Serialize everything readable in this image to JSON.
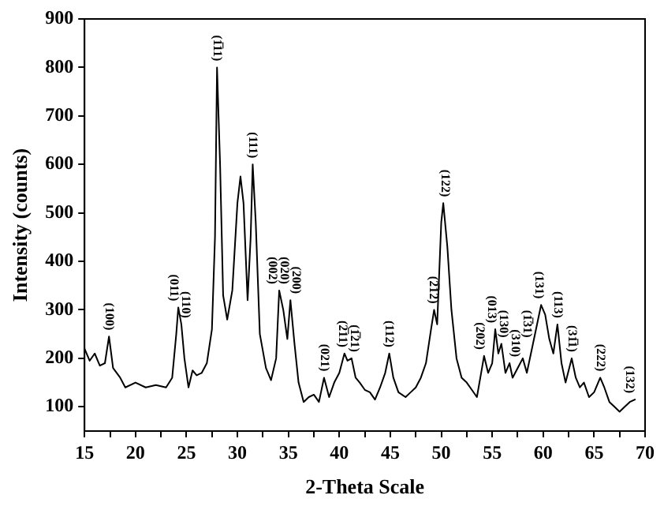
{
  "chart_data": {
    "type": "line",
    "xlabel": "2-Theta Scale",
    "ylabel": "Intensity (counts)",
    "xlim": [
      15,
      70
    ],
    "ylim": [
      50,
      900
    ],
    "xticks": [
      15,
      {
        "value": 17.5,
        "label": null
      },
      20,
      {
        "value": 22.5,
        "label": null
      },
      25,
      {
        "value": 27.5,
        "label": null
      },
      30,
      {
        "value": 32.5,
        "label": null
      },
      35,
      {
        "value": 37.5,
        "label": null
      },
      40,
      {
        "value": 42.5,
        "label": null
      },
      45,
      {
        "value": 47.5,
        "label": null
      },
      50,
      {
        "value": 52.5,
        "label": null
      },
      55,
      {
        "value": 57.5,
        "label": null
      },
      60,
      {
        "value": 62.5,
        "label": null
      },
      65,
      {
        "value": 67.5,
        "label": null
      },
      70
    ],
    "yticks": [
      100,
      200,
      300,
      400,
      500,
      600,
      700,
      800,
      900
    ],
    "grid": false,
    "legend": false,
    "marker": "none",
    "line_style": "solid",
    "series": [
      {
        "color": "#000000",
        "x": [
          15,
          15.5,
          16,
          16.5,
          17,
          17.4,
          17.8,
          18.5,
          19,
          20,
          21,
          22,
          23,
          23.6,
          24,
          24.2,
          24.5,
          24.8,
          25.2,
          25.6,
          26,
          26.5,
          27,
          27.5,
          27.8,
          28,
          28.3,
          28.6,
          29,
          29.5,
          30,
          30.3,
          30.6,
          31,
          31.3,
          31.5,
          31.8,
          32.2,
          32.8,
          33.3,
          33.8,
          34.1,
          34.5,
          34.9,
          35.2,
          35.6,
          36,
          36.5,
          37,
          37.5,
          38,
          38.5,
          39,
          39.5,
          40,
          40.5,
          40.8,
          41.2,
          41.6,
          42,
          42.5,
          43,
          43.5,
          44,
          44.5,
          44.9,
          45.3,
          45.8,
          46.5,
          47,
          47.5,
          48,
          48.5,
          49,
          49.3,
          49.6,
          50,
          50.2,
          50.6,
          51,
          51.5,
          52,
          52.5,
          53,
          53.5,
          54,
          54.2,
          54.6,
          55,
          55.3,
          55.6,
          55.9,
          56.3,
          56.7,
          57,
          57.5,
          58,
          58.4,
          59,
          59.5,
          59.8,
          60.2,
          60.6,
          61,
          61.4,
          61.8,
          62.2,
          62.8,
          63.2,
          63.6,
          64,
          64.5,
          65,
          65.6,
          66,
          66.5,
          67,
          67.5,
          68,
          68.5,
          69
        ],
        "values": [
          220,
          195,
          210,
          185,
          190,
          245,
          180,
          160,
          140,
          150,
          140,
          145,
          140,
          160,
          250,
          305,
          270,
          200,
          140,
          175,
          165,
          170,
          190,
          260,
          450,
          800,
          600,
          330,
          280,
          340,
          520,
          575,
          520,
          320,
          450,
          600,
          480,
          250,
          180,
          155,
          200,
          340,
          300,
          240,
          320,
          230,
          150,
          110,
          120,
          125,
          110,
          160,
          120,
          150,
          170,
          210,
          195,
          200,
          160,
          150,
          135,
          130,
          115,
          140,
          170,
          210,
          160,
          130,
          120,
          130,
          140,
          160,
          190,
          260,
          300,
          270,
          480,
          520,
          430,
          300,
          200,
          160,
          150,
          135,
          120,
          180,
          205,
          170,
          190,
          260,
          210,
          230,
          170,
          190,
          160,
          180,
          200,
          170,
          230,
          280,
          310,
          290,
          240,
          210,
          270,
          190,
          150,
          200,
          160,
          140,
          150,
          120,
          130,
          160,
          140,
          110,
          100,
          90,
          100,
          110,
          115
        ]
      }
    ],
    "annotations": [
      {
        "text": "(100)",
        "x": 17.4,
        "y": 245
      },
      {
        "text": "(011)",
        "x": 24.2,
        "y": 305
      },
      {
        "text": "(110)",
        "x": 24.5,
        "y": 270
      },
      {
        "text": "(1̅11)",
        "x": 28,
        "y": 800
      },
      {
        "text": "(111)",
        "x": 31.5,
        "y": 600
      },
      {
        "text": "(002)",
        "x": 34.1,
        "y": 340
      },
      {
        "text": "(020)",
        "x": 34.5,
        "y": 300
      },
      {
        "text": "(200)",
        "x": 35.2,
        "y": 320
      },
      {
        "text": "(021)",
        "x": 38.5,
        "y": 160
      },
      {
        "text": "(2̅11)",
        "x": 40.5,
        "y": 210
      },
      {
        "text": "(1̅21)",
        "x": 41.2,
        "y": 200
      },
      {
        "text": "(112)",
        "x": 44.9,
        "y": 210
      },
      {
        "text": "(2̅12)",
        "x": 49.3,
        "y": 300
      },
      {
        "text": "(122)",
        "x": 50.2,
        "y": 520
      },
      {
        "text": "(202)",
        "x": 54.2,
        "y": 205
      },
      {
        "text": "(013)",
        "x": 55.3,
        "y": 260
      },
      {
        "text": "(130)",
        "x": 55.9,
        "y": 230
      },
      {
        "text": "(310)",
        "x": 56.7,
        "y": 190
      },
      {
        "text": "(1̅31)",
        "x": 58,
        "y": 200
      },
      {
        "text": "(131)",
        "x": 59.8,
        "y": 310
      },
      {
        "text": "(113)",
        "x": 61.4,
        "y": 270
      },
      {
        "text": "(31̅1)",
        "x": 62.8,
        "y": 200
      },
      {
        "text": "(222)",
        "x": 65.6,
        "y": 160
      },
      {
        "text": "(132)",
        "x": 68.5,
        "y": 110
      }
    ]
  }
}
